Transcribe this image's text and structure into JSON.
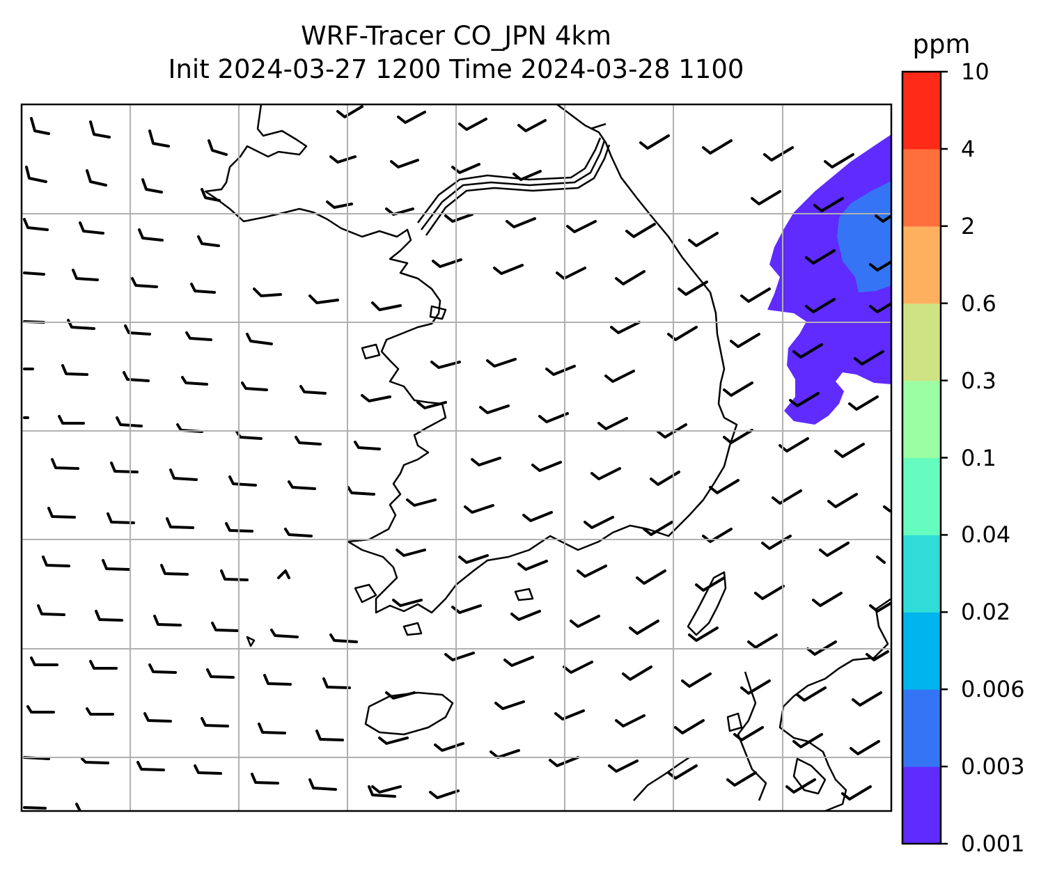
{
  "title": {
    "line1": "WRF-Tracer CO_JPN 4km",
    "line2": "Init 2024-03-27 1200 Time 2024-03-28 1100"
  },
  "colorbar": {
    "unit": "ppm",
    "levels": [
      "0.001",
      "0.003",
      "0.006",
      "0.02",
      "0.04",
      "0.1",
      "0.3",
      "0.6",
      "2",
      "4",
      "10"
    ],
    "colors": [
      "#5f2bff",
      "#3575f5",
      "#00b4ee",
      "#2fdcd8",
      "#66fcc0",
      "#9cfea3",
      "#d0e384",
      "#ffb05f",
      "#ff6f3b",
      "#ff2b18"
    ]
  },
  "map": {
    "gridlines": "on",
    "overlay": "wind barbs",
    "basemap": "coastlines"
  }
}
